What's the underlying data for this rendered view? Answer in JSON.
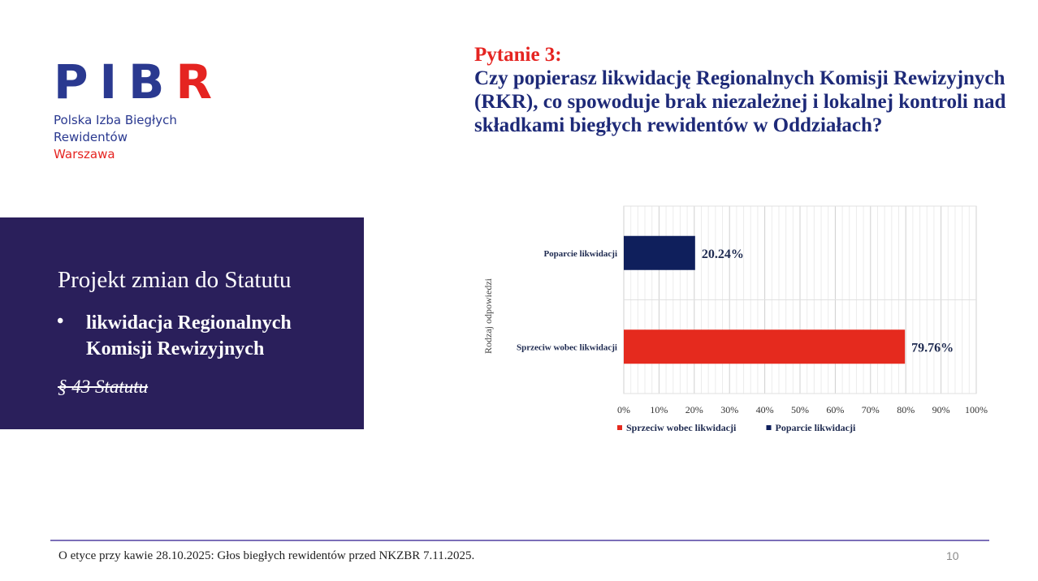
{
  "logo": {
    "letters": [
      "P",
      "I",
      "B",
      "R"
    ],
    "line1": "Polska Izba Biegłych",
    "line2": "Rewidentów",
    "city": "Warszawa",
    "colors": {
      "primary": "#2a3990",
      "accent": "#e52421"
    }
  },
  "panel": {
    "title": "Projekt zmian do Statutu",
    "bullet": "likwidacja Regionalnych Komisji Rewizyjnych",
    "ref": "§ 43 Statutu",
    "background": "#2a1f5b"
  },
  "question": {
    "label": "Pytanie 3:",
    "text": "Czy popierasz likwidację Regionalnych Komisji Rewizyjnych (RKR), co spowoduje brak niezależnej i lokalnej kontroli nad składkami biegłych rewidentów w Oddziałach?"
  },
  "chart_data": {
    "type": "bar",
    "orientation": "horizontal",
    "categories": [
      "Poparcie likwidacji",
      "Sprzeciw wobec likwidacji"
    ],
    "values": [
      20.24,
      79.76
    ],
    "value_labels": [
      "20.24%",
      "79.76%"
    ],
    "colors": [
      "#0f1f5c",
      "#e52a1e"
    ],
    "xlim": [
      0,
      100
    ],
    "xticks": [
      "0%",
      "10%",
      "20%",
      "30%",
      "40%",
      "50%",
      "60%",
      "70%",
      "80%",
      "90%",
      "100%"
    ],
    "xlabel": "",
    "ylabel": "Rodzaj odpowiedzi",
    "grid": true,
    "legend": {
      "placement": "bottom",
      "entries": [
        {
          "label": "Sprzeciw wobec likwidacji",
          "color": "#e52a1e"
        },
        {
          "label": "Poparcie likwidacji",
          "color": "#0f1f5c"
        }
      ]
    }
  },
  "footer": {
    "text": "O etyce przy kawie 28.10.2025: Głos biegłych rewidentów przed NKZBR 7.11.2025.",
    "page": "10"
  }
}
